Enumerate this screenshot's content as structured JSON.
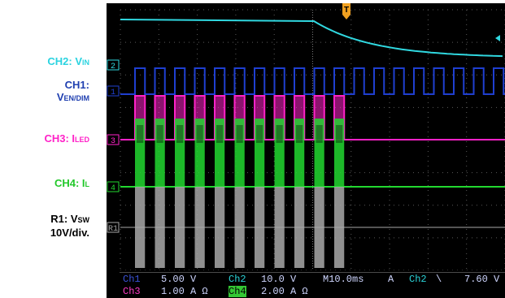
{
  "labels": {
    "ch2": {
      "main": "CH2: V",
      "sub": "IN",
      "color": "#2ad3e0"
    },
    "ch1": {
      "line1": "CH1:",
      "main": "V",
      "sub": "EN/DIM",
      "color": "#1f3fb0"
    },
    "ch3": {
      "main": "CH3: I",
      "sub": "LED",
      "color": "#ff22c8"
    },
    "ch4": {
      "main": "CH4: I",
      "sub": "L",
      "color": "#22c82a"
    },
    "r1": {
      "main": "R1: V",
      "sub": "SW",
      "line2": "10V/div.",
      "color": "#000000"
    }
  },
  "markers": {
    "ch2": "2",
    "ch1": "1",
    "ch3": "3",
    "ch4": "4",
    "r1": "R1",
    "trigger": "T"
  },
  "readout": {
    "ch1_name": "Ch1",
    "ch1_scale": "5.00 V",
    "ch2_name": "Ch2",
    "ch2_scale": "10.0 V",
    "ch3_name": "Ch3",
    "ch3_scale": "1.00 A Ω",
    "ch4_name": "Ch4",
    "ch4_scale": "2.00 A Ω",
    "timebase": "M10.0ms",
    "trigger_mode": "A",
    "trigger_source": "Ch2",
    "trigger_slope": "\\",
    "trigger_level": "7.60 V"
  },
  "colors": {
    "background": "#000000",
    "grid": "#5a5a5a",
    "ch1": "#1f3fd0",
    "ch2": "#30d8e0",
    "ch3": "#ff22c8",
    "ch4": "#22d830",
    "r1": "#a8a8a8",
    "trigger": "#f0a020"
  },
  "icons": {
    "trigger_marker": "trigger-t-icon",
    "trigger_arrow": "left-arrow-icon"
  }
}
